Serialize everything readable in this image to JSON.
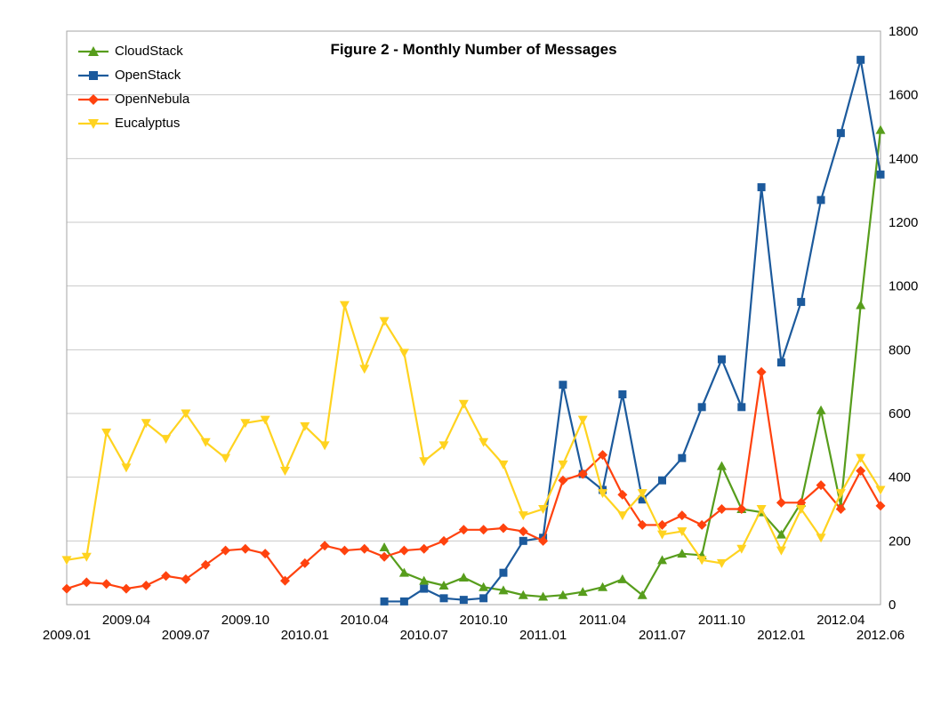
{
  "chart_data": {
    "type": "line",
    "title": "Figure 2 - Monthly Number of Messages",
    "grid": "horizontal-only",
    "grid_color": "#c9c9c9",
    "border_color": "#a6a6a6",
    "text_color": "#000000",
    "legend_position": "top-left",
    "y_tick_side": "right",
    "ylim": [
      0,
      1800
    ],
    "y_ticks": [
      0,
      200,
      400,
      600,
      800,
      1000,
      1200,
      1400,
      1600,
      1800
    ],
    "x": [
      "2009.01",
      "2009.02",
      "2009.03",
      "2009.04",
      "2009.05",
      "2009.06",
      "2009.07",
      "2009.08",
      "2009.09",
      "2009.10",
      "2009.11",
      "2009.12",
      "2010.01",
      "2010.02",
      "2010.03",
      "2010.04",
      "2010.05",
      "2010.06",
      "2010.07",
      "2010.08",
      "2010.09",
      "2010.10",
      "2010.11",
      "2010.12",
      "2011.01",
      "2011.02",
      "2011.03",
      "2011.04",
      "2011.05",
      "2011.06",
      "2011.07",
      "2011.08",
      "2011.09",
      "2011.10",
      "2011.11",
      "2011.12",
      "2012.01",
      "2012.02",
      "2012.03",
      "2012.04",
      "2012.05",
      "2012.06"
    ],
    "x_ticks": [
      {
        "label": "2009.01",
        "index": 0,
        "row": 2
      },
      {
        "label": "2009.04",
        "index": 3,
        "row": 1
      },
      {
        "label": "2009.07",
        "index": 6,
        "row": 2
      },
      {
        "label": "2009.10",
        "index": 9,
        "row": 1
      },
      {
        "label": "2010.01",
        "index": 12,
        "row": 2
      },
      {
        "label": "2010.04",
        "index": 15,
        "row": 1
      },
      {
        "label": "2010.07",
        "index": 18,
        "row": 2
      },
      {
        "label": "2010.10",
        "index": 21,
        "row": 1
      },
      {
        "label": "2011.01",
        "index": 24,
        "row": 2
      },
      {
        "label": "2011.04",
        "index": 27,
        "row": 1
      },
      {
        "label": "2011.07",
        "index": 30,
        "row": 2
      },
      {
        "label": "2011.10",
        "index": 33,
        "row": 1
      },
      {
        "label": "2012.01",
        "index": 36,
        "row": 2
      },
      {
        "label": "2012.04",
        "index": 39,
        "row": 1
      },
      {
        "label": "2012.06",
        "index": 41,
        "row": 2
      }
    ],
    "series": [
      {
        "name": "CloudStack",
        "color": "#579d1c",
        "marker": "triangle-up",
        "values": [
          null,
          null,
          null,
          null,
          null,
          null,
          null,
          null,
          null,
          null,
          null,
          null,
          null,
          null,
          null,
          null,
          180,
          100,
          75,
          60,
          85,
          55,
          45,
          30,
          25,
          30,
          40,
          55,
          80,
          30,
          140,
          160,
          155,
          435,
          300,
          290,
          220,
          320,
          610,
          310,
          940,
          1490
        ]
      },
      {
        "name": "OpenStack",
        "color": "#1c5a9c",
        "marker": "square",
        "values": [
          null,
          null,
          null,
          null,
          null,
          null,
          null,
          null,
          null,
          null,
          null,
          null,
          null,
          null,
          null,
          null,
          10,
          10,
          50,
          20,
          15,
          20,
          100,
          200,
          210,
          690,
          410,
          360,
          660,
          330,
          390,
          460,
          620,
          770,
          620,
          1310,
          760,
          950,
          1270,
          1480,
          1710,
          1350
        ]
      },
      {
        "name": "OpenNebula",
        "color": "#ff420e",
        "marker": "diamond",
        "values": [
          50,
          70,
          65,
          50,
          60,
          90,
          80,
          125,
          170,
          175,
          160,
          75,
          130,
          185,
          170,
          175,
          150,
          170,
          175,
          200,
          235,
          235,
          240,
          230,
          200,
          390,
          410,
          470,
          345,
          250,
          250,
          280,
          250,
          300,
          300,
          730,
          320,
          320,
          375,
          300,
          420,
          310
        ]
      },
      {
        "name": "Eucalyptus",
        "color": "#ffd320",
        "marker": "triangle-down",
        "values": [
          140,
          150,
          540,
          430,
          570,
          520,
          600,
          510,
          460,
          570,
          580,
          420,
          560,
          500,
          940,
          740,
          890,
          790,
          450,
          500,
          630,
          510,
          440,
          280,
          300,
          440,
          580,
          350,
          280,
          350,
          220,
          230,
          140,
          130,
          175,
          300,
          170,
          300,
          210,
          350,
          460,
          360
        ]
      }
    ]
  }
}
